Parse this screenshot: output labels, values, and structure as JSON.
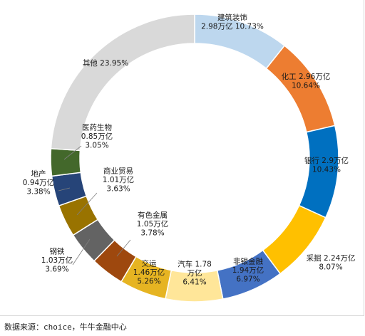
{
  "chart_data": {
    "type": "pie",
    "title": "",
    "slices": [
      {
        "name": "建筑装饰",
        "value_label": "2.98万亿",
        "value": 2.98,
        "pct": 10.73,
        "pct_label": "10.73%",
        "color": "#bdd7ee"
      },
      {
        "name": "化工",
        "value_label": "2.96万亿",
        "value": 2.96,
        "pct": 10.64,
        "pct_label": "10.64%",
        "color": "#ed7d31"
      },
      {
        "name": "银行",
        "value_label": "2.9万亿",
        "value": 2.9,
        "pct": 10.43,
        "pct_label": "10.43%",
        "color": "#0070c0"
      },
      {
        "name": "采掘",
        "value_label": "2.24万亿",
        "value": 2.24,
        "pct": 8.07,
        "pct_label": "8.07%",
        "color": "#ffc000"
      },
      {
        "name": "非银金融",
        "value_label": "1.94万亿",
        "value": 1.94,
        "pct": 6.97,
        "pct_label": "6.97%",
        "color": "#4472c4"
      },
      {
        "name": "汽车",
        "value_label": "1.78万亿",
        "value": 1.78,
        "pct": 6.41,
        "pct_label": "6.41%",
        "color": "#ffe699"
      },
      {
        "name": "交运",
        "value_label": "1.46万亿",
        "value": 1.46,
        "pct": 5.26,
        "pct_label": "5.26%",
        "color": "#e6b422"
      },
      {
        "name": "有色金属",
        "value_label": "1.05万亿",
        "value": 1.05,
        "pct": 3.78,
        "pct_label": "3.78%",
        "color": "#9e480e"
      },
      {
        "name": "钢铁",
        "value_label": "1.03万亿",
        "value": 1.03,
        "pct": 3.69,
        "pct_label": "3.69%",
        "color": "#636363"
      },
      {
        "name": "商业贸易",
        "value_label": "1.01万亿",
        "value": 1.01,
        "pct": 3.63,
        "pct_label": "3.63%",
        "color": "#997300"
      },
      {
        "name": "地产",
        "value_label": "0.94万亿",
        "value": 0.94,
        "pct": 3.38,
        "pct_label": "3.38%",
        "color": "#264478"
      },
      {
        "name": "医药生物",
        "value_label": "0.85万亿",
        "value": 0.85,
        "pct": 3.05,
        "pct_label": "3.05%",
        "color": "#43682b"
      },
      {
        "name": "其他",
        "value_label": "",
        "value": null,
        "pct": 23.95,
        "pct_label": "23.95%",
        "color": "#d9d9d9"
      }
    ]
  },
  "source_note": "数据来源：choice，牛牛金融中心"
}
